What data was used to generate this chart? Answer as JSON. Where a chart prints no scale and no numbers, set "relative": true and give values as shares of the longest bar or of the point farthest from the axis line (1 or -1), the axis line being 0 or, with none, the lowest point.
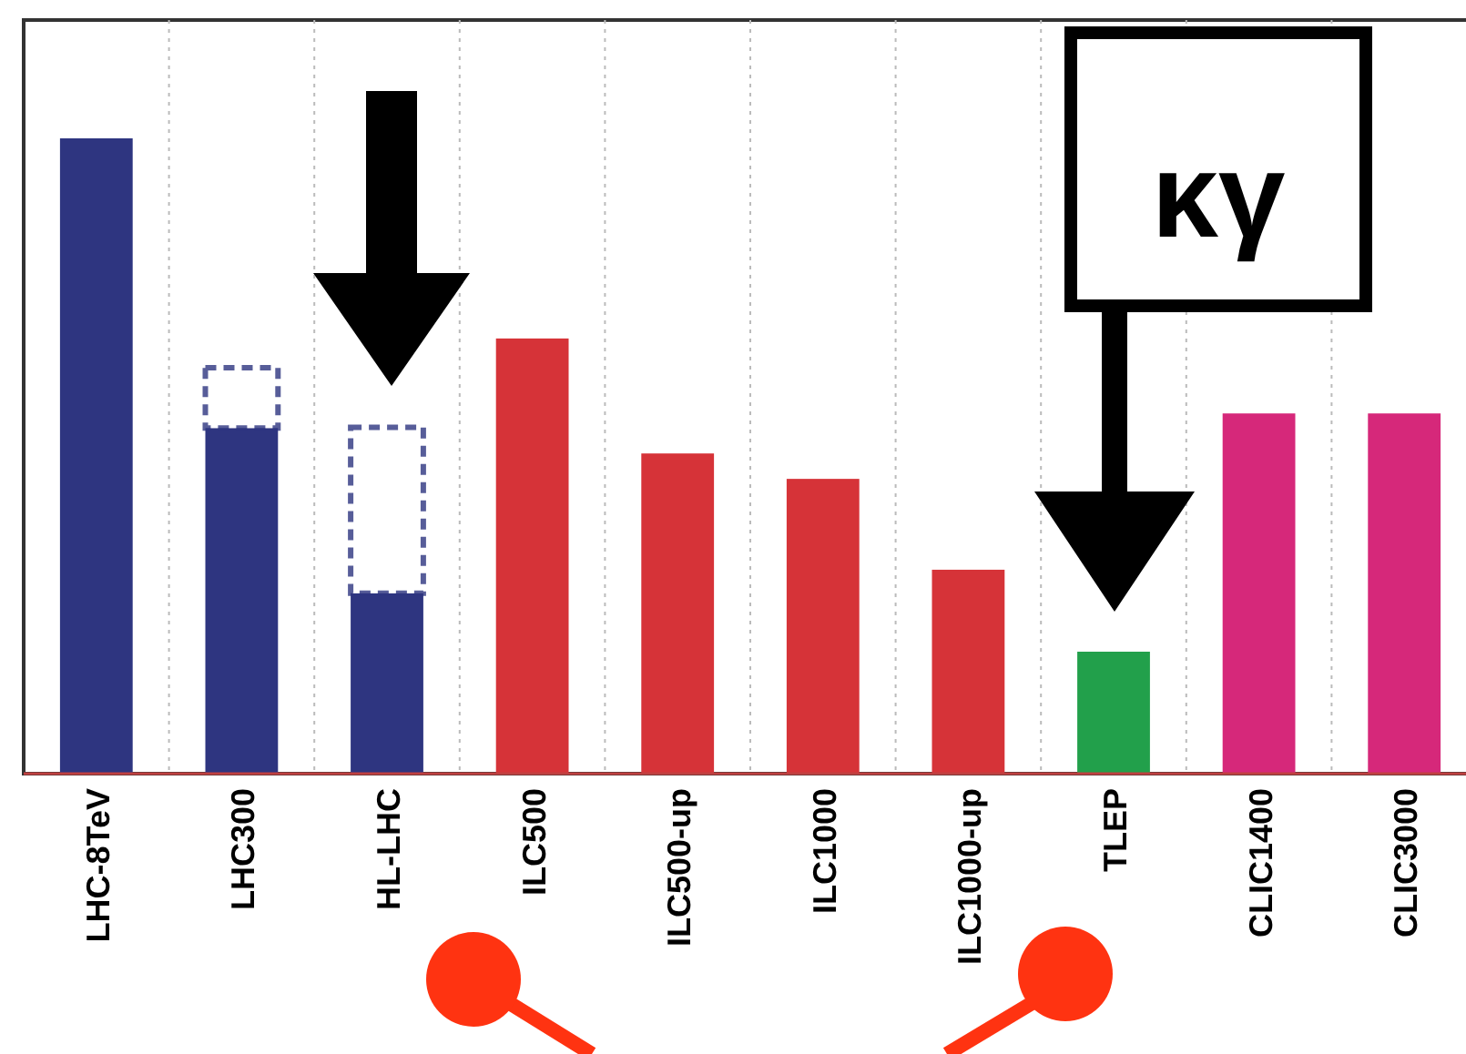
{
  "chart_data": {
    "type": "bar",
    "relative": true,
    "stacked": true,
    "grid": "x",
    "categories": [
      "LHC-8TeV",
      "LHC300",
      "HL-LHC",
      "ILC500",
      "ILC500-up",
      "ILC1000",
      "ILC1000-up",
      "TLEP",
      "CLIC1400",
      "CLIC3000"
    ],
    "series": [
      {
        "colors": [
          "#2e3580",
          "#2e3580",
          "#2e3580",
          "#d63338",
          "#d63338",
          "#d63338",
          "#d63338",
          "#22a04b",
          "#d6287a",
          "#d6287a"
        ],
        "values": [
          1,
          0.544,
          0.284,
          0.685,
          0.504,
          0.464,
          0.321,
          0.192,
          0.567,
          0.567
        ]
      },
      {
        "color": "#ffffff",
        "line_style": "dashed",
        "values": [
          null,
          0.095,
          0.261,
          null,
          null,
          null,
          null,
          null,
          null,
          null
        ]
      }
    ],
    "annotations": [
      "κγ"
    ]
  }
}
